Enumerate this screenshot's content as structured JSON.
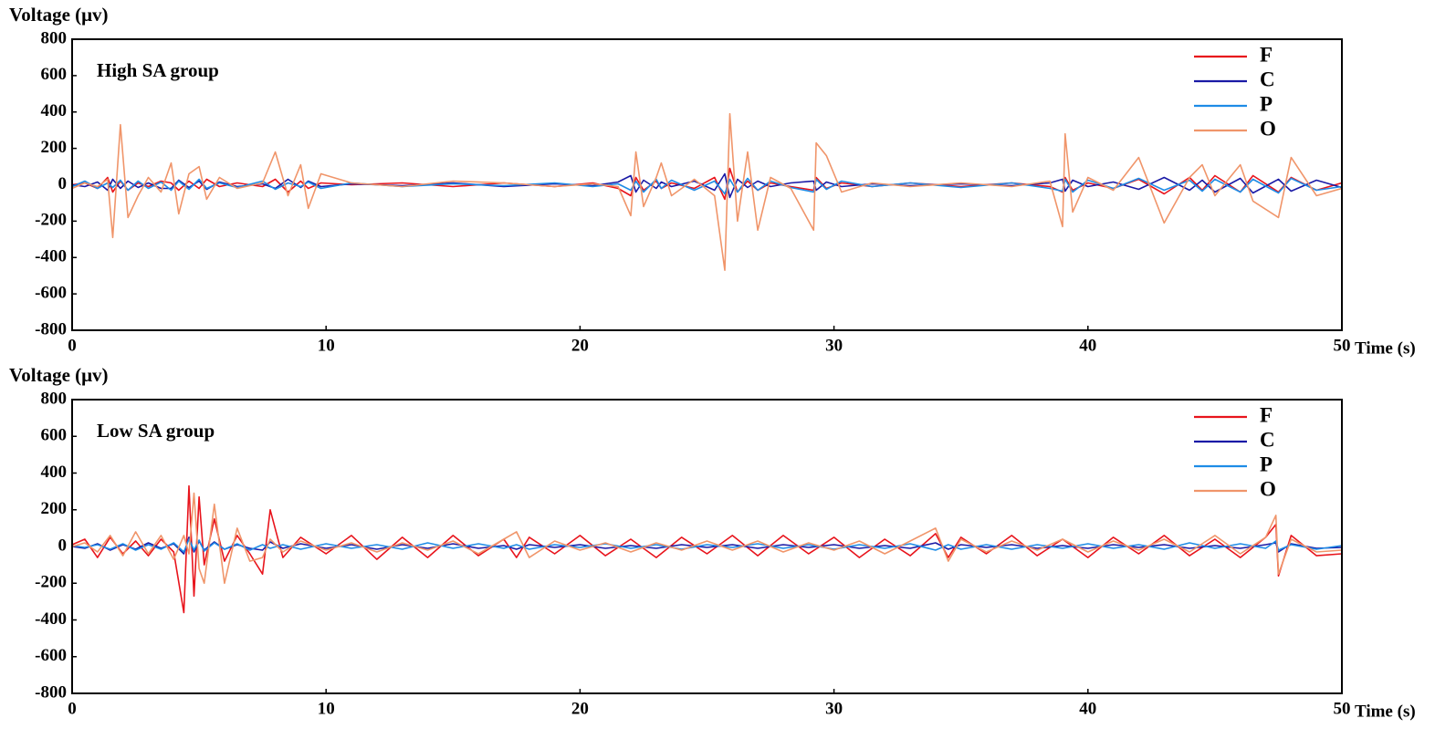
{
  "chart_data": [
    {
      "type": "line",
      "y_label": "Voltage (μv)",
      "x_label": "Time (s)",
      "annotation": "High SA group",
      "xlim": [
        0,
        50
      ],
      "ylim": [
        -800,
        800
      ],
      "xticks": [
        0,
        10,
        20,
        30,
        40,
        50
      ],
      "yticks": [
        -800,
        -600,
        -400,
        -200,
        0,
        200,
        400,
        600,
        800
      ],
      "x": [
        0,
        0.5,
        1,
        1.4,
        1.6,
        1.9,
        2.2,
        2.6,
        3,
        3.5,
        3.9,
        4.2,
        4.6,
        5,
        5.3,
        5.8,
        6.5,
        7.5,
        8,
        8.5,
        9,
        9.3,
        9.8,
        11,
        13,
        15,
        17,
        19,
        20.5,
        21.5,
        22,
        22.2,
        22.5,
        23,
        23.2,
        23.6,
        24.5,
        25.3,
        25.7,
        25.9,
        26.2,
        26.6,
        27,
        27.5,
        28.3,
        29.2,
        29.3,
        29.7,
        30.3,
        31.5,
        33,
        35,
        37,
        38.5,
        39,
        39.1,
        39.4,
        40,
        41,
        42,
        43,
        44,
        44.5,
        45,
        46,
        46.5,
        47.5,
        48,
        49,
        50
      ],
      "series": [
        {
          "name": "F",
          "color": "#e8141c",
          "values": [
            0,
            10,
            -20,
            40,
            -40,
            20,
            -30,
            10,
            -10,
            20,
            10,
            -30,
            20,
            -20,
            30,
            -10,
            10,
            -10,
            30,
            -40,
            20,
            -20,
            10,
            0,
            10,
            -10,
            10,
            -10,
            10,
            -20,
            -60,
            40,
            -30,
            20,
            -20,
            10,
            -20,
            40,
            -80,
            90,
            -40,
            20,
            -30,
            10,
            -10,
            -30,
            40,
            -20,
            10,
            -10,
            10,
            -10,
            10,
            -10,
            -40,
            40,
            -30,
            10,
            -20,
            30,
            -50,
            40,
            -30,
            50,
            -40,
            50,
            -40,
            40,
            -30,
            10
          ]
        },
        {
          "name": "C",
          "color": "#1a1aa6",
          "values": [
            0,
            -10,
            15,
            -30,
            30,
            -20,
            20,
            -15,
            10,
            -20,
            -20,
            25,
            -15,
            20,
            -25,
            15,
            -10,
            5,
            -20,
            30,
            -15,
            20,
            -10,
            5,
            -5,
            10,
            -10,
            5,
            -5,
            15,
            50,
            -40,
            25,
            -20,
            15,
            -10,
            20,
            -30,
            60,
            -70,
            30,
            -15,
            20,
            -10,
            10,
            20,
            -30,
            15,
            -10,
            5,
            -5,
            5,
            -5,
            10,
            30,
            -35,
            25,
            -10,
            15,
            -25,
            40,
            -30,
            25,
            -40,
            35,
            -45,
            30,
            -35,
            25,
            -15
          ]
        },
        {
          "name": "P",
          "color": "#1e8ce6",
          "values": [
            -10,
            20,
            -20,
            10,
            -15,
            25,
            -30,
            20,
            -20,
            15,
            -30,
            20,
            -25,
            30,
            -20,
            10,
            -15,
            20,
            -25,
            10,
            -10,
            15,
            -20,
            10,
            -10,
            5,
            -5,
            10,
            -10,
            5,
            -30,
            20,
            -40,
            30,
            -20,
            25,
            -30,
            20,
            -50,
            30,
            -40,
            35,
            -30,
            20,
            -15,
            -40,
            30,
            -25,
            20,
            -10,
            10,
            -15,
            10,
            -20,
            -35,
            30,
            -40,
            25,
            -20,
            35,
            -30,
            25,
            -35,
            30,
            -40,
            30,
            -45,
            35,
            -30,
            -10
          ]
        },
        {
          "name": "O",
          "color": "#f0956a",
          "values": [
            -20,
            10,
            -10,
            30,
            -290,
            330,
            -180,
            -60,
            40,
            -40,
            120,
            -160,
            60,
            100,
            -80,
            40,
            -20,
            10,
            180,
            -60,
            110,
            -130,
            60,
            10,
            -10,
            20,
            10,
            -10,
            5,
            -10,
            -170,
            180,
            -120,
            40,
            120,
            -60,
            30,
            -60,
            -470,
            390,
            -200,
            180,
            -250,
            40,
            -20,
            -250,
            230,
            160,
            -40,
            10,
            -10,
            10,
            -10,
            20,
            -230,
            280,
            -150,
            40,
            -30,
            150,
            -210,
            40,
            110,
            -60,
            110,
            -90,
            -180,
            150,
            -60,
            -20
          ]
        }
      ]
    },
    {
      "type": "line",
      "y_label": "Voltage (μv)",
      "x_label": "Time (s)",
      "annotation": "Low SA group",
      "xlim": [
        0,
        50
      ],
      "ylim": [
        -800,
        800
      ],
      "xticks": [
        0,
        10,
        20,
        30,
        40,
        50
      ],
      "yticks": [
        -800,
        -600,
        -400,
        -200,
        0,
        200,
        400,
        600,
        800
      ],
      "x": [
        0,
        0.5,
        1,
        1.5,
        2,
        2.5,
        3,
        3.5,
        4,
        4.4,
        4.6,
        4.8,
        5,
        5.2,
        5.6,
        6,
        6.5,
        7,
        7.5,
        7.8,
        8.3,
        9,
        10,
        11,
        12,
        13,
        14,
        15,
        16,
        17,
        17.5,
        18,
        19,
        20,
        21,
        22,
        23,
        24,
        25,
        26,
        27,
        28,
        29,
        30,
        31,
        32,
        33,
        34,
        34.5,
        35,
        36,
        37,
        38,
        39,
        40,
        41,
        42,
        43,
        44,
        45,
        46,
        47,
        47.4,
        47.5,
        48,
        49,
        50
      ],
      "series": [
        {
          "name": "F",
          "color": "#e8141c",
          "values": [
            10,
            40,
            -60,
            50,
            -40,
            30,
            -50,
            40,
            -30,
            -360,
            330,
            -270,
            270,
            -100,
            150,
            -80,
            60,
            -40,
            -150,
            200,
            -60,
            50,
            -40,
            60,
            -70,
            50,
            -60,
            60,
            -50,
            40,
            -60,
            50,
            -40,
            60,
            -50,
            40,
            -60,
            50,
            -40,
            60,
            -50,
            60,
            -40,
            50,
            -60,
            40,
            -50,
            70,
            -60,
            50,
            -40,
            60,
            -50,
            40,
            -60,
            50,
            -40,
            60,
            -50,
            40,
            -60,
            50,
            120,
            -160,
            60,
            -50,
            -40
          ]
        },
        {
          "name": "C",
          "color": "#1a1aa6",
          "values": [
            0,
            -10,
            15,
            -20,
            10,
            -15,
            20,
            -10,
            15,
            -40,
            50,
            -30,
            30,
            -20,
            25,
            -15,
            10,
            -10,
            -20,
            25,
            -10,
            15,
            -10,
            10,
            -15,
            10,
            -10,
            15,
            -10,
            5,
            -15,
            10,
            -5,
            10,
            -10,
            5,
            -10,
            10,
            -5,
            10,
            -10,
            10,
            -5,
            10,
            -10,
            5,
            -10,
            20,
            -15,
            10,
            -5,
            10,
            -10,
            5,
            -10,
            10,
            -5,
            10,
            -10,
            5,
            -10,
            10,
            20,
            -30,
            15,
            -10,
            -5
          ]
        },
        {
          "name": "P",
          "color": "#1e8ce6",
          "values": [
            5,
            -5,
            10,
            -15,
            15,
            -20,
            10,
            -15,
            20,
            -30,
            40,
            -20,
            35,
            -25,
            20,
            -15,
            15,
            -20,
            10,
            -10,
            10,
            -15,
            15,
            -10,
            10,
            -15,
            20,
            -10,
            15,
            -10,
            10,
            -15,
            10,
            -5,
            15,
            -10,
            10,
            -15,
            10,
            -5,
            15,
            -10,
            10,
            -15,
            10,
            -10,
            15,
            -20,
            10,
            -15,
            10,
            -15,
            10,
            -10,
            15,
            -10,
            10,
            -15,
            20,
            -10,
            15,
            -10,
            30,
            -20,
            10,
            -15,
            5
          ]
        },
        {
          "name": "O",
          "color": "#f0956a",
          "values": [
            0,
            20,
            -30,
            60,
            -50,
            80,
            -40,
            60,
            -70,
            60,
            -40,
            290,
            -120,
            -200,
            230,
            -200,
            100,
            -80,
            -60,
            40,
            -30,
            30,
            -20,
            20,
            -30,
            20,
            -20,
            30,
            -40,
            40,
            80,
            -60,
            30,
            -20,
            20,
            -30,
            20,
            -20,
            30,
            -20,
            30,
            -30,
            20,
            -20,
            30,
            -40,
            30,
            100,
            -80,
            40,
            -30,
            30,
            -20,
            40,
            -30,
            30,
            -20,
            40,
            -30,
            60,
            -40,
            50,
            170,
            -150,
            40,
            -30,
            -20
          ]
        }
      ]
    }
  ]
}
